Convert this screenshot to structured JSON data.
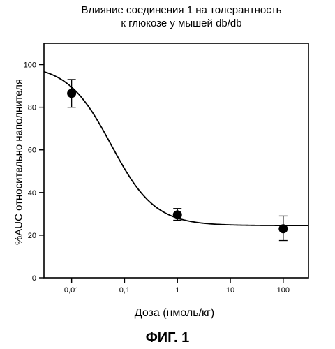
{
  "chart_data": {
    "type": "scatter",
    "title_line1": "Влияние соединения 1 на толерантность",
    "title_line2": "к глюкозе у мышей db/db",
    "xlabel": "Доза  (нмоль/кг)",
    "ylabel": "%AUC относительно наполнителя",
    "figure_label": "ФИГ. 1",
    "x_scale": "log",
    "xlim": [
      0.003,
      300
    ],
    "ylim": [
      0,
      110
    ],
    "x_ticks": [
      {
        "value": 0.01,
        "label": "0,01"
      },
      {
        "value": 0.1,
        "label": "0,1"
      },
      {
        "value": 1,
        "label": "1"
      },
      {
        "value": 10,
        "label": "10"
      },
      {
        "value": 100,
        "label": "100"
      }
    ],
    "y_ticks": [
      {
        "value": 0,
        "label": "0"
      },
      {
        "value": 20,
        "label": "20"
      },
      {
        "value": 40,
        "label": "40"
      },
      {
        "value": 60,
        "label": "60"
      },
      {
        "value": 80,
        "label": "80"
      },
      {
        "value": 100,
        "label": "100"
      }
    ],
    "points": [
      {
        "x": 0.01,
        "y": 86.5,
        "err_low": 80,
        "err_high": 93
      },
      {
        "x": 1,
        "y": 29.5,
        "err_low": 27,
        "err_high": 32.5
      },
      {
        "x": 100,
        "y": 23,
        "err_low": 17.5,
        "err_high": 29
      }
    ],
    "fit": {
      "bottom": 24.5,
      "top": 100,
      "log_ec50": -1.25,
      "hill": 1.05
    },
    "grid": false,
    "legend": "none"
  }
}
